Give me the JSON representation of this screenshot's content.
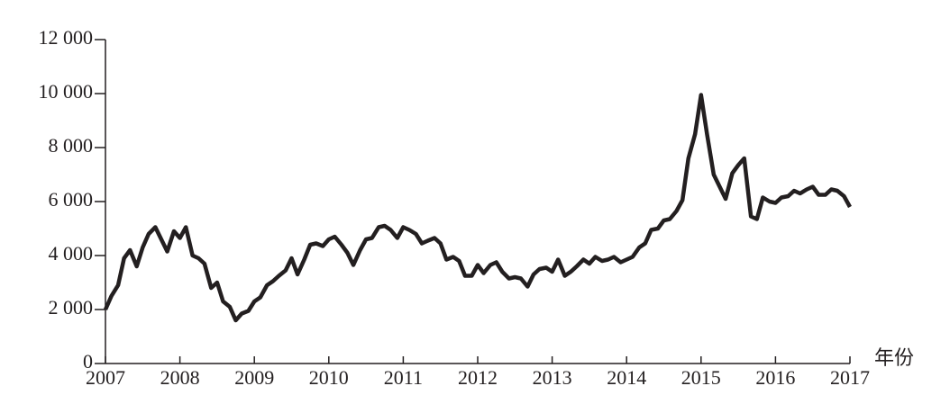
{
  "chart_data": {
    "type": "line",
    "x_label": "年份",
    "x": [
      2007,
      2007.08,
      2007.17,
      2007.25,
      2007.33,
      2007.42,
      2007.5,
      2007.58,
      2007.67,
      2007.75,
      2007.83,
      2007.92,
      2008,
      2008.08,
      2008.17,
      2008.25,
      2008.33,
      2008.42,
      2008.5,
      2008.58,
      2008.67,
      2008.75,
      2008.83,
      2008.92,
      2009,
      2009.08,
      2009.17,
      2009.25,
      2009.33,
      2009.42,
      2009.5,
      2009.58,
      2009.67,
      2009.75,
      2009.83,
      2009.92,
      2010,
      2010.08,
      2010.17,
      2010.25,
      2010.33,
      2010.42,
      2010.5,
      2010.58,
      2010.67,
      2010.75,
      2010.83,
      2010.92,
      2011,
      2011.08,
      2011.17,
      2011.25,
      2011.33,
      2011.42,
      2011.5,
      2011.58,
      2011.67,
      2011.75,
      2011.83,
      2011.92,
      2012,
      2012.08,
      2012.17,
      2012.25,
      2012.33,
      2012.42,
      2012.5,
      2012.58,
      2012.67,
      2012.75,
      2012.83,
      2012.92,
      2013,
      2013.08,
      2013.17,
      2013.25,
      2013.33,
      2013.42,
      2013.5,
      2013.58,
      2013.67,
      2013.75,
      2013.83,
      2013.92,
      2014,
      2014.08,
      2014.17,
      2014.25,
      2014.33,
      2014.42,
      2014.5,
      2014.58,
      2014.67,
      2014.75,
      2014.83,
      2014.92,
      2015,
      2015.08,
      2015.17,
      2015.25,
      2015.33,
      2015.42,
      2015.5,
      2015.58,
      2015.67,
      2015.75,
      2015.83,
      2015.92,
      2016,
      2016.08,
      2016.17,
      2016.25,
      2016.33,
      2016.42,
      2016.5,
      2016.58,
      2016.67,
      2016.75,
      2016.83,
      2016.92,
      2017
    ],
    "series": [
      {
        "color": "#231f20",
        "values": [
          2000,
          2500,
          2900,
          3900,
          4200,
          3600,
          4300,
          4800,
          5050,
          4600,
          4150,
          4900,
          4650,
          5050,
          4000,
          3900,
          3700,
          2800,
          3000,
          2300,
          2100,
          1600,
          1850,
          1950,
          2300,
          2450,
          2900,
          3050,
          3250,
          3450,
          3900,
          3300,
          3850,
          4400,
          4450,
          4350,
          4600,
          4700,
          4400,
          4100,
          3650,
          4200,
          4600,
          4650,
          5050,
          5100,
          4950,
          4650,
          5050,
          4950,
          4800,
          4450,
          4550,
          4650,
          4450,
          3850,
          3950,
          3800,
          3250,
          3250,
          3650,
          3350,
          3650,
          3750,
          3400,
          3150,
          3200,
          3150,
          2850,
          3300,
          3500,
          3550,
          3400,
          3850,
          3250,
          3400,
          3600,
          3850,
          3700,
          3950,
          3800,
          3850,
          3950,
          3750,
          3850,
          3950,
          4300,
          4450,
          4950,
          5000,
          5300,
          5350,
          5650,
          6050,
          7600,
          8500,
          9950,
          8500,
          7000,
          6550,
          6100,
          7050,
          7350,
          7600,
          5450,
          5350,
          6150,
          6000,
          5950,
          6150,
          6200,
          6400,
          6300,
          6450,
          6550,
          6250,
          6250,
          6450,
          6400,
          6200,
          5800
        ]
      }
    ],
    "xlim": [
      2007,
      2017
    ],
    "xticks": [
      2007,
      2008,
      2009,
      2010,
      2011,
      2012,
      2013,
      2014,
      2015,
      2016,
      2017
    ],
    "ylim": [
      0,
      12000
    ],
    "yticks": [
      0,
      {
        "value": 2000,
        "label": "2 000"
      },
      {
        "value": 4000,
        "label": "4 000"
      },
      {
        "value": 6000,
        "label": "6 000"
      },
      {
        "value": 8000,
        "label": "8 000"
      },
      {
        "value": 10000,
        "label": "10 000"
      },
      {
        "value": 12000,
        "label": "12 000"
      }
    ]
  }
}
